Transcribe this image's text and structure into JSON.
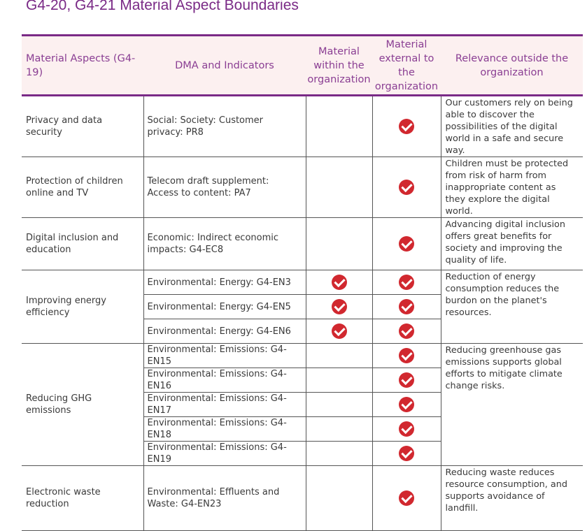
{
  "title": "G4-20, G4-21 Material Aspect Boundaries",
  "headers": {
    "aspect": "Material Aspects (G4-19)",
    "dma": "DMA and Indicators",
    "within": "Material within the organization",
    "external": "Material external to the organization",
    "relevance": "Relevance outside the organization"
  },
  "rows": {
    "privacy": {
      "aspect": "Privacy and data security",
      "indicator": "Social: Society: Customer privacy: PR8",
      "relevance": "Our customers rely on being able to discover the possibilities of the digital world in a safe and secure way."
    },
    "children": {
      "aspect": "Protection of children online and TV",
      "indicator": "Telecom draft supplement: Access to content: PA7",
      "relevance": "Children must be protected from risk of harm from inappropriate content as they explore the digital world."
    },
    "inclusion": {
      "aspect": "Digital inclusion and education",
      "indicator": "Economic: Indirect economic impacts: G4-EC8",
      "relevance": "Advancing digital inclusion offers great benefits for society and improving the quality of life."
    },
    "energy": {
      "aspect": "Improving energy efficiency",
      "indicators": [
        "Environmental: Energy: G4-EN3",
        "Environmental: Energy: G4-EN5",
        "Environmental: Energy: G4-EN6"
      ],
      "relevance": "Reduction of energy consumption reduces the burdon on the planet's resources."
    },
    "ghg": {
      "aspect": "Reducing GHG emissions",
      "indicators": [
        "Environmental: Emissions: G4-EN15",
        "Environmental: Emissions: G4-EN16",
        "Environmental: Emissions: G4-EN17",
        "Environmental: Emissions: G4-EN18",
        "Environmental: Emissions: G4-EN19"
      ],
      "relevance": "Reducing greenhouse gas emissions supports global efforts to mitigate climate change risks."
    },
    "waste": {
      "aspect": "Electronic waste reduction",
      "indicator": "Environmental: Effluents and Waste: G4-EN23",
      "relevance": "Reducing waste reduces resource consumption, and supports avoidance of landfill."
    }
  },
  "check_color": "#d1282f",
  "accent_color": "#7a2a86",
  "header_bg": "#fcf0f0"
}
